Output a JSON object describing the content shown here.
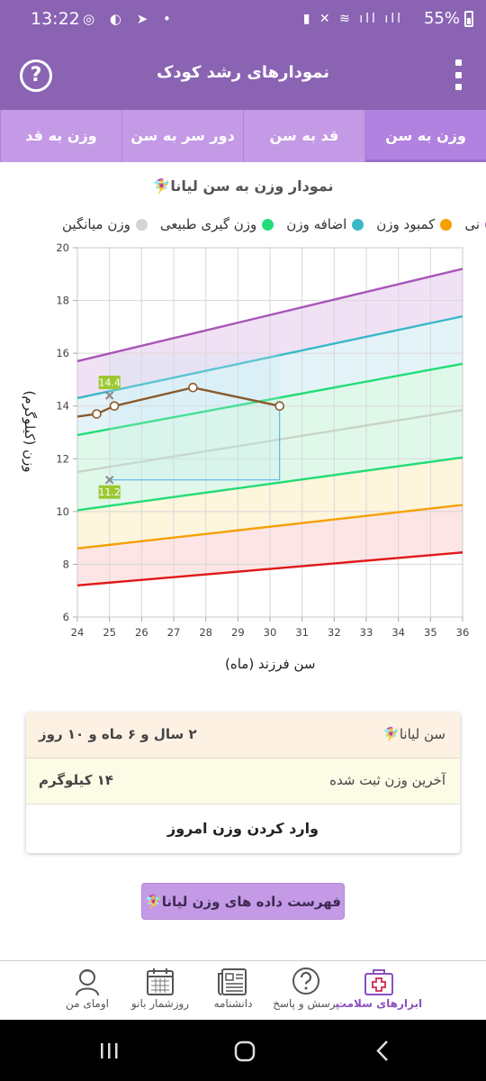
{
  "status_bar": {
    "time": "13:22",
    "battery": "55%"
  },
  "app_bar": {
    "title": "نمودارهای رشد کودک"
  },
  "tabs": [
    {
      "label": "وزن به قد",
      "active": false
    },
    {
      "label": "دور سر به سن",
      "active": false
    },
    {
      "label": "قد به سن",
      "active": false
    },
    {
      "label": "وزن به سن",
      "active": true
    }
  ],
  "chart_title": "نمودار وزن به سن لیانا🧚‍♀️",
  "legend": [
    {
      "label": "نی",
      "color": "#a855b8"
    },
    {
      "label": "کمبود وزن",
      "color": "#f5a000"
    },
    {
      "label": "اضافه وزن",
      "color": "#3ab8c8"
    },
    {
      "label": "وزن گیری طبیعی",
      "color": "#22dd77"
    },
    {
      "label": "وزن میانگین",
      "color": "#d4d4d4"
    }
  ],
  "chart_data": {
    "type": "line",
    "xlabel": "سن فرزند (ماه)",
    "ylabel": "وزن (کیلوگرم)",
    "xlim": [
      24,
      36
    ],
    "ylim": [
      6,
      20
    ],
    "x_ticks": [
      24,
      25,
      26,
      27,
      28,
      29,
      30,
      31,
      32,
      33,
      34,
      35,
      36
    ],
    "y_ticks": [
      6,
      8,
      10,
      12,
      14,
      16,
      18,
      20
    ],
    "grid": true,
    "legend_position": "top",
    "reference_lines": [
      {
        "name": "نی",
        "color": "#a855b8",
        "values": [
          [
            24,
            15.7
          ],
          [
            36,
            19.2
          ]
        ]
      },
      {
        "name": "اضافه وزن",
        "color": "#3ab8c8",
        "values": [
          [
            24,
            14.3
          ],
          [
            36,
            17.4
          ]
        ]
      },
      {
        "name": "وزن گیری طبیعی",
        "color": "#22dd77",
        "values": [
          [
            24,
            12.9
          ],
          [
            36,
            15.6
          ]
        ]
      },
      {
        "name": "وزن میانگین",
        "color": "#c8d4c8",
        "values": [
          [
            24,
            11.5
          ],
          [
            36,
            13.85
          ]
        ]
      },
      {
        "name": "وزن گیری طبیعی",
        "color": "#22dd77",
        "values": [
          [
            24,
            10.05
          ],
          [
            36,
            12.05
          ]
        ]
      },
      {
        "name": "کمبود وزن",
        "color": "#f5a000",
        "values": [
          [
            24,
            8.6
          ],
          [
            36,
            10.25
          ]
        ]
      },
      {
        "color": "#e01818",
        "values": [
          [
            24,
            7.2
          ],
          [
            36,
            8.45
          ]
        ]
      }
    ],
    "bands": [
      {
        "color": "#eedcf3",
        "between": [
          0,
          1
        ]
      },
      {
        "color": "#dff1f7",
        "between": [
          1,
          2
        ]
      },
      {
        "color": "#dbf7e6",
        "between": [
          2,
          4
        ]
      },
      {
        "color": "#fdf3d6",
        "between": [
          4,
          5
        ]
      },
      {
        "color": "#fde0e0",
        "between": [
          5,
          6
        ]
      }
    ],
    "series": [
      {
        "color": "#8a5a2b",
        "points": [
          [
            24,
            13.6
          ],
          [
            24.6,
            13.7
          ],
          [
            25.15,
            14.0
          ],
          [
            27.6,
            14.7
          ],
          [
            30.3,
            14.0
          ]
        ]
      }
    ],
    "range_markers": [
      {
        "x": 25,
        "y": 14.4,
        "label": "14.4"
      },
      {
        "x": 25,
        "y": 11.2,
        "label": "11.2"
      }
    ]
  },
  "info": {
    "age_label": "سن لیانا🧚‍♀️",
    "age_value": "۲ سال و ۶ ماه و ۱۰ روز",
    "weight_label": "آخرین وزن ثبت شده",
    "weight_value": "۱۴ کیلوگرم",
    "enter_button": "وارد کردن وزن امروز"
  },
  "list_button": "فهرست داده های وزن لیانا🧚‍♀️",
  "bottom_nav": [
    {
      "label": "اومای من",
      "icon": "person-icon",
      "active": false
    },
    {
      "label": "روزشمار بانو",
      "icon": "calendar-icon",
      "active": false
    },
    {
      "label": "دانشنامه",
      "icon": "newspaper-icon",
      "active": false
    },
    {
      "label": "پرسش و پاسخ",
      "icon": "question-bubble-icon",
      "active": false
    },
    {
      "label": "ابزارهای سلامت",
      "icon": "first-aid-kit-icon",
      "active": true
    }
  ]
}
